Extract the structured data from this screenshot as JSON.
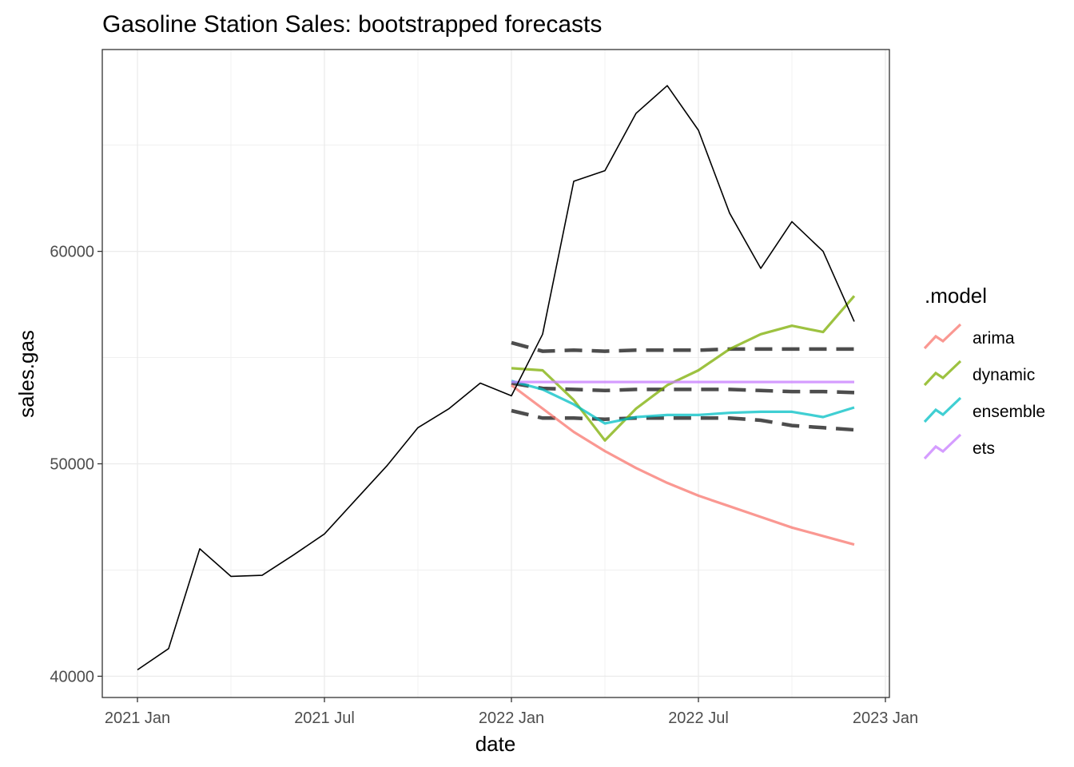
{
  "chart_data": {
    "type": "line",
    "title": "Gasoline Station Sales: bootstrapped forecasts",
    "xlabel": "date",
    "ylabel": "sales.gas",
    "x_ticks": [
      "2021 Jan",
      "2021 Jul",
      "2022 Jan",
      "2022 Jul",
      "2023 Jan"
    ],
    "y_ticks": [
      40000,
      50000,
      60000
    ],
    "ylim": [
      39000,
      69500
    ],
    "grid": true,
    "legend": {
      "title": ".model",
      "placement": "right",
      "entries": [
        "arima",
        "dynamic",
        "ensemble",
        "ets"
      ]
    },
    "colors": {
      "arima": "#F8766D",
      "dynamic": "#7CAE00",
      "ensemble": "#00BFC4",
      "ets": "#C77CFF",
      "actual": "#000000",
      "interval": "#4D4D4D"
    },
    "actual": {
      "x": [
        "2021-01",
        "2021-02",
        "2021-03",
        "2021-04",
        "2021-05",
        "2021-06",
        "2021-07",
        "2021-08",
        "2021-09",
        "2021-10",
        "2021-11",
        "2021-12",
        "2022-01",
        "2022-02",
        "2022-03",
        "2022-04",
        "2022-05",
        "2022-06",
        "2022-07",
        "2022-08",
        "2022-09",
        "2022-10",
        "2022-11",
        "2022-12"
      ],
      "y": [
        40300,
        41300,
        46000,
        44700,
        44750,
        45700,
        46700,
        48300,
        49900,
        51700,
        52600,
        53800,
        53200,
        56100,
        63300,
        63800,
        66500,
        67800,
        65700,
        61800,
        59200,
        61400,
        60000,
        56700
      ]
    },
    "forecast_x": [
      "2022-01",
      "2022-02",
      "2022-03",
      "2022-04",
      "2022-05",
      "2022-06",
      "2022-07",
      "2022-08",
      "2022-09",
      "2022-10",
      "2022-11",
      "2022-12"
    ],
    "series": [
      {
        "name": "arima",
        "values": [
          53700,
          52600,
          51500,
          50600,
          49800,
          49100,
          48500,
          48000,
          47500,
          47000,
          46600,
          46200
        ]
      },
      {
        "name": "dynamic",
        "values": [
          54500,
          54400,
          53000,
          51100,
          52600,
          53700,
          54400,
          55400,
          56100,
          56500,
          56200,
          57900
        ]
      },
      {
        "name": "ensemble",
        "values": [
          53900,
          53500,
          52800,
          51900,
          52200,
          52300,
          52300,
          52400,
          52450,
          52450,
          52200,
          52650
        ]
      },
      {
        "name": "ets",
        "values": [
          53850,
          53850,
          53850,
          53850,
          53850,
          53850,
          53850,
          53850,
          53850,
          53850,
          53850,
          53850
        ]
      }
    ],
    "interval_lines": [
      {
        "values": [
          55700,
          55300,
          55350,
          55300,
          55350,
          55350,
          55350,
          55400,
          55400,
          55400,
          55400,
          55400
        ]
      },
      {
        "values": [
          53800,
          53550,
          53500,
          53450,
          53500,
          53500,
          53500,
          53500,
          53450,
          53400,
          53400,
          53350
        ]
      },
      {
        "values": [
          52500,
          52150,
          52150,
          52100,
          52150,
          52150,
          52150,
          52150,
          52050,
          51800,
          51700,
          51600
        ]
      }
    ]
  }
}
